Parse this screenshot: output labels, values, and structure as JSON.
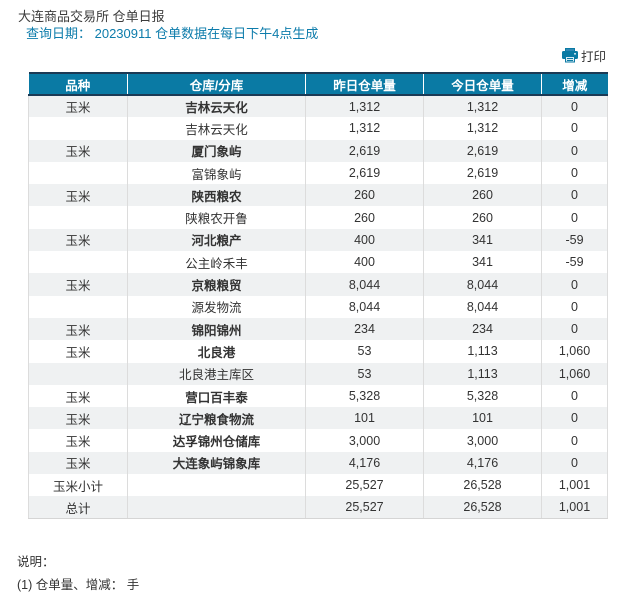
{
  "header": {
    "title": "大连商品交易所 仓单日报",
    "query_line": "查询日期： 20230911 仓单数据在每日下午4点生成"
  },
  "toolbar": {
    "print_label": "打印",
    "print_icon": "printer-icon"
  },
  "colors": {
    "header_bg": "#0a7aa4",
    "header_border": "#1b3a55",
    "stripe_row_bg": "#eff1f2",
    "link_blue": "#0d7cab"
  },
  "table": {
    "columns": [
      "品种",
      "仓库/分库",
      "昨日仓单量",
      "今日仓单量",
      "增减"
    ],
    "rows": [
      {
        "variety": "玉米",
        "warehouse": "吉林云天化",
        "yesterday": "1,312",
        "today": "1,312",
        "change": "0",
        "bold": true
      },
      {
        "variety": "",
        "warehouse": "吉林云天化",
        "yesterday": "1,312",
        "today": "1,312",
        "change": "0",
        "bold": false
      },
      {
        "variety": "玉米",
        "warehouse": "厦门象屿",
        "yesterday": "2,619",
        "today": "2,619",
        "change": "0",
        "bold": true
      },
      {
        "variety": "",
        "warehouse": "富锦象屿",
        "yesterday": "2,619",
        "today": "2,619",
        "change": "0",
        "bold": false
      },
      {
        "variety": "玉米",
        "warehouse": "陕西粮农",
        "yesterday": "260",
        "today": "260",
        "change": "0",
        "bold": true
      },
      {
        "variety": "",
        "warehouse": "陕粮农开鲁",
        "yesterday": "260",
        "today": "260",
        "change": "0",
        "bold": false
      },
      {
        "variety": "玉米",
        "warehouse": "河北粮产",
        "yesterday": "400",
        "today": "341",
        "change": "-59",
        "bold": true
      },
      {
        "variety": "",
        "warehouse": "公主岭禾丰",
        "yesterday": "400",
        "today": "341",
        "change": "-59",
        "bold": false
      },
      {
        "variety": "玉米",
        "warehouse": "京粮粮贸",
        "yesterday": "8,044",
        "today": "8,044",
        "change": "0",
        "bold": true
      },
      {
        "variety": "",
        "warehouse": "源发物流",
        "yesterday": "8,044",
        "today": "8,044",
        "change": "0",
        "bold": false
      },
      {
        "variety": "玉米",
        "warehouse": "锦阳锦州",
        "yesterday": "234",
        "today": "234",
        "change": "0",
        "bold": true
      },
      {
        "variety": "玉米",
        "warehouse": "北良港",
        "yesterday": "53",
        "today": "1,113",
        "change": "1,060",
        "bold": true
      },
      {
        "variety": "",
        "warehouse": "北良港主库区",
        "yesterday": "53",
        "today": "1,113",
        "change": "1,060",
        "bold": false
      },
      {
        "variety": "玉米",
        "warehouse": "营口百丰泰",
        "yesterday": "5,328",
        "today": "5,328",
        "change": "0",
        "bold": true
      },
      {
        "variety": "玉米",
        "warehouse": "辽宁粮食物流",
        "yesterday": "101",
        "today": "101",
        "change": "0",
        "bold": true
      },
      {
        "variety": "玉米",
        "warehouse": "达孚锦州仓储库",
        "yesterday": "3,000",
        "today": "3,000",
        "change": "0",
        "bold": true
      },
      {
        "variety": "玉米",
        "warehouse": "大连象屿锦象库",
        "yesterday": "4,176",
        "today": "4,176",
        "change": "0",
        "bold": true
      },
      {
        "variety": "玉米小计",
        "warehouse": "",
        "yesterday": "25,527",
        "today": "26,528",
        "change": "1,001",
        "bold": false
      },
      {
        "variety": "总计",
        "warehouse": "",
        "yesterday": "25,527",
        "today": "26,528",
        "change": "1,001",
        "bold": false
      }
    ]
  },
  "footer": {
    "note_title": "说明：",
    "note1": "(1) 仓单量、增减： 手"
  }
}
